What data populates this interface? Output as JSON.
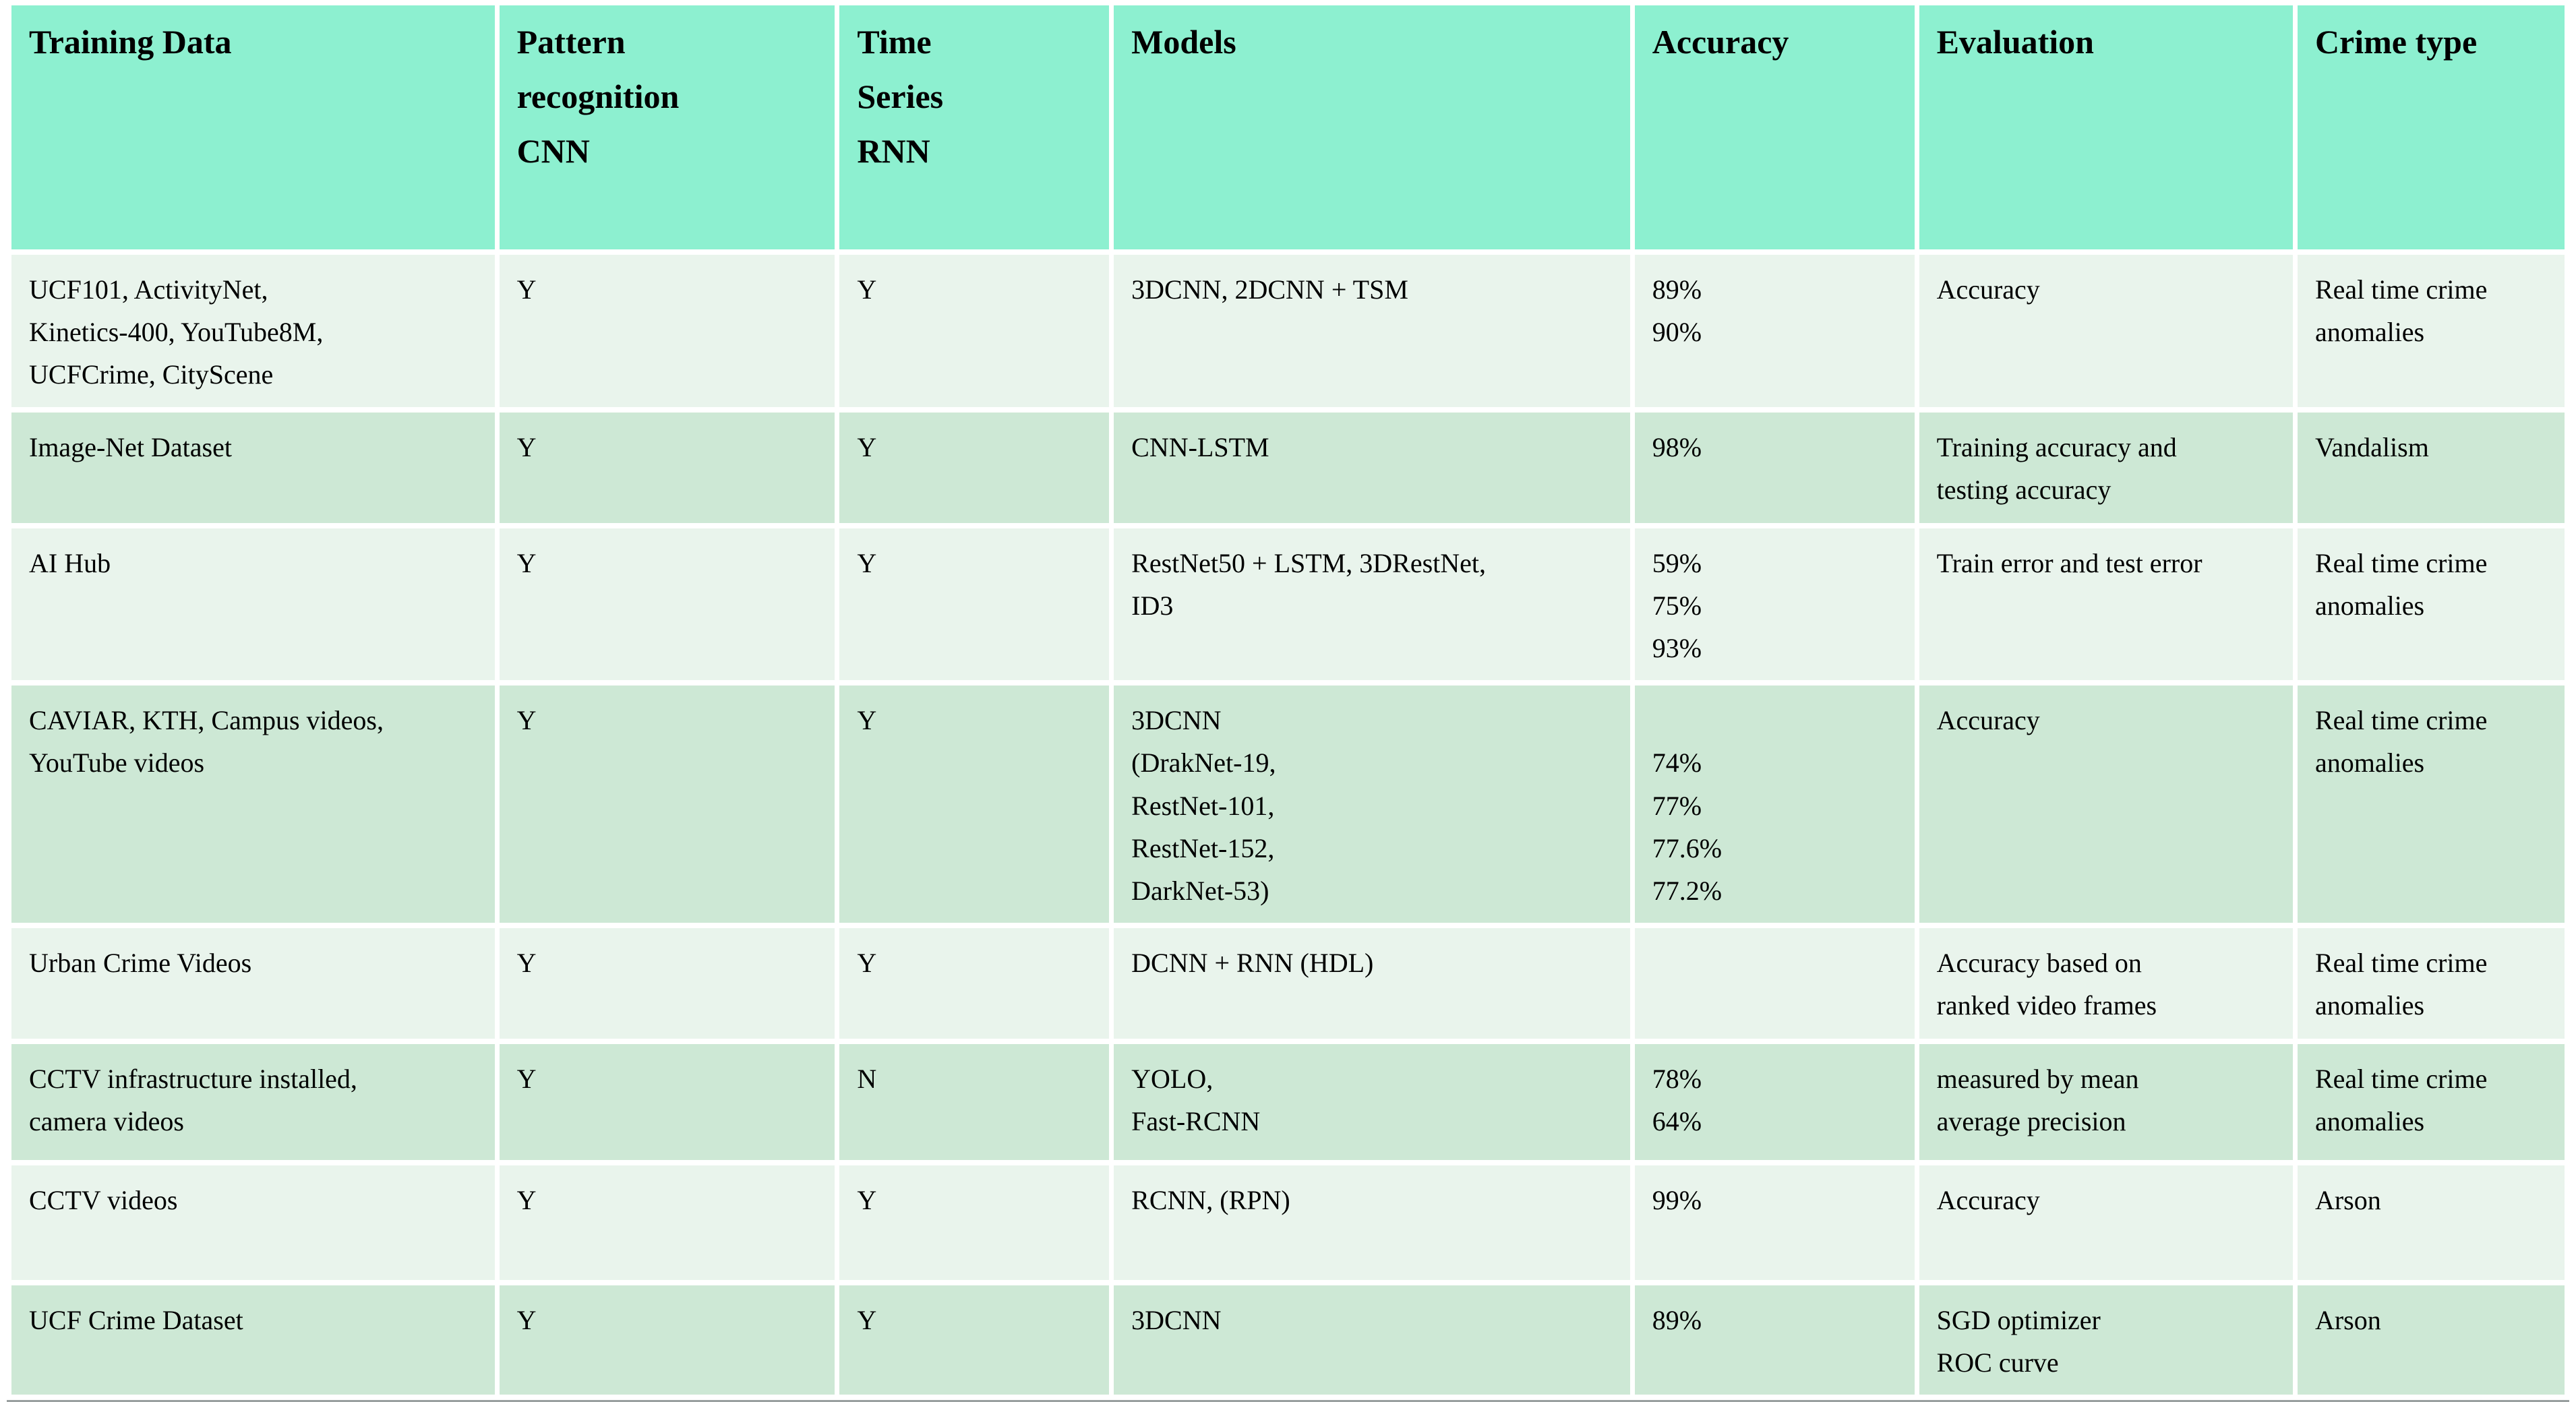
{
  "colors": {
    "header_bg": "#8df0d0",
    "row_light": "#e9f4ec",
    "row_medium": "#cde8d5",
    "text_color": "#000000"
  },
  "table": {
    "headers": [
      "Training Data",
      "Pattern\nrecognition\nCNN",
      "Time\nSeries\nRNN",
      "Models",
      "Accuracy",
      "Evaluation",
      "Crime type"
    ],
    "rows": [
      {
        "cells": [
          "UCF101, ActivityNet,\nKinetics-400, YouTube8M,\nUCFCrime, CityScene",
          "Y",
          "Y",
          "3DCNN, 2DCNN + TSM",
          "89%\n90%",
          "Accuracy",
          "Real time crime\nanomalies"
        ]
      },
      {
        "cells": [
          "Image-Net Dataset",
          "Y",
          "Y",
          "CNN-LSTM",
          "98%",
          "Training accuracy and\ntesting accuracy",
          "Vandalism"
        ]
      },
      {
        "cells": [
          "AI Hub",
          "Y",
          "Y",
          "RestNet50 + LSTM, 3DRestNet,\nID3",
          "59%\n75%\n93%",
          "Train error and test error",
          "Real time crime\nanomalies"
        ]
      },
      {
        "cells": [
          "CAVIAR, KTH, Campus videos,\nYouTube videos",
          "Y",
          "Y",
          "3DCNN\n(DrakNet-19,\nRestNet-101,\nRestNet-152,\nDarkNet-53)",
          "\n74%\n77%\n77.6%\n77.2%",
          "Accuracy",
          "Real time crime\nanomalies"
        ]
      },
      {
        "cells": [
          "Urban Crime Videos",
          "Y",
          "Y",
          "DCNN + RNN (HDL)",
          "",
          "Accuracy based on\nranked video frames",
          "Real time crime\nanomalies"
        ]
      },
      {
        "cells": [
          "CCTV infrastructure installed,\ncamera videos",
          "Y",
          "N",
          "YOLO,\nFast-RCNN",
          "78%\n64%",
          "measured by mean\naverage precision",
          "Real time crime\nanomalies"
        ]
      },
      {
        "cells": [
          "CCTV videos",
          "Y",
          "Y",
          "RCNN, (RPN)",
          "99%",
          "Accuracy",
          "Arson"
        ]
      },
      {
        "cells": [
          "UCF Crime Dataset",
          "Y",
          "Y",
          "3DCNN",
          "89%",
          "SGD optimizer\nROC curve",
          "Arson"
        ]
      }
    ]
  }
}
